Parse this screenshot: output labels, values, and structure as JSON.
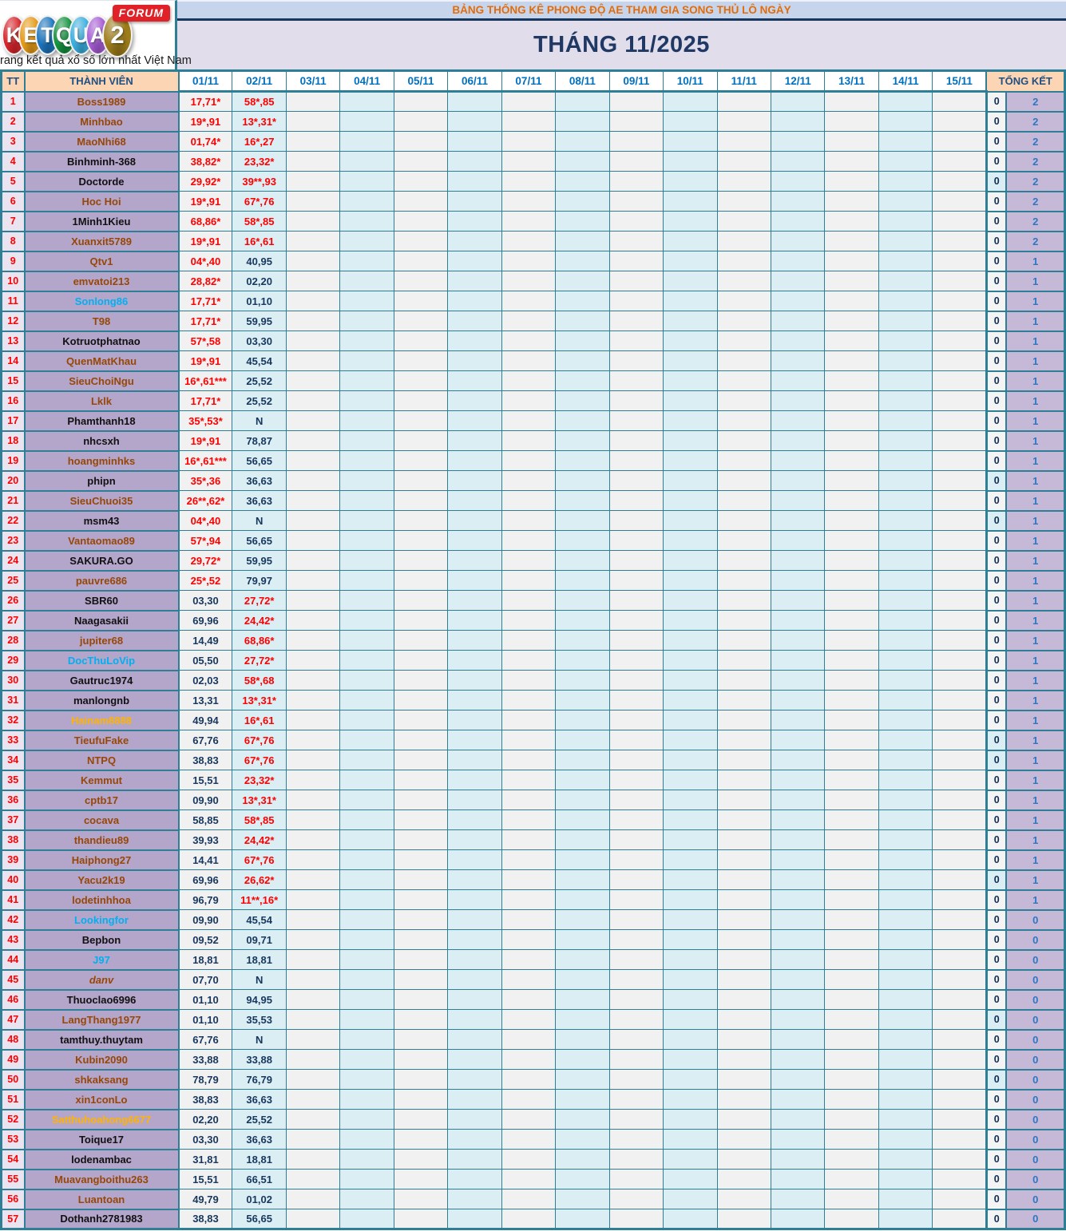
{
  "logo": {
    "letters": [
      {
        "ch": "K",
        "color": "#d6252c"
      },
      {
        "ch": "E",
        "color": "#e59a18"
      },
      {
        "ch": "T",
        "color": "#1b74bc"
      },
      {
        "ch": "Q",
        "color": "#15923f"
      },
      {
        "ch": "U",
        "color": "#3baede"
      },
      {
        "ch": "A",
        "color": "#a55bd4"
      },
      {
        "ch": "2",
        "color": "#9c7b19"
      }
    ],
    "forum_label": "FORUM",
    "tagline": "rang kết quả xổ số lớn nhất Việt Nam"
  },
  "header": {
    "title": "BẢNG THỐNG KÊ PHONG ĐỘ AE THAM GIA SONG THỦ LÔ NGÀY",
    "month": "THÁNG 11/2025"
  },
  "table": {
    "tt_label": "TT",
    "member_label": "THÀNH VIÊN",
    "total_label": "TỔNG KẾT",
    "dates": [
      "01/11",
      "02/11",
      "03/11",
      "04/11",
      "05/11",
      "06/11",
      "07/11",
      "08/11",
      "09/11",
      "10/11",
      "11/11",
      "12/11",
      "13/11",
      "14/11",
      "15/11"
    ]
  },
  "colors": {
    "border_teal": "#2e7f96",
    "header_peach": "#fbd5b4",
    "member_purple": "#b4a5ca",
    "total_purple": "#c6b8d7",
    "hit_red": "#fe0000",
    "value_navy": "#17375e",
    "date_blue": "#0070c0",
    "title_orange": "#e36c0a",
    "month_navy": "#1f3864"
  },
  "rows": [
    {
      "tt": "1",
      "name": "Boss1989",
      "name_color": "brown",
      "d1": "17,71*",
      "d1_hit": true,
      "d2": "58*,85",
      "d2_hit": true,
      "zero": "0",
      "total": "2"
    },
    {
      "tt": "2",
      "name": "Minhbao",
      "name_color": "brown",
      "d1": "19*,91",
      "d1_hit": true,
      "d2": "13*,31*",
      "d2_hit": true,
      "zero": "0",
      "total": "2"
    },
    {
      "tt": "3",
      "name": "MaoNhi68",
      "name_color": "brown",
      "d1": "01,74*",
      "d1_hit": true,
      "d2": "16*,27",
      "d2_hit": true,
      "zero": "0",
      "total": "2"
    },
    {
      "tt": "4",
      "name": "Binhminh-368",
      "name_color": "black",
      "d1": "38,82*",
      "d1_hit": true,
      "d2": "23,32*",
      "d2_hit": true,
      "zero": "0",
      "total": "2"
    },
    {
      "tt": "5",
      "name": "Doctorde",
      "name_color": "black",
      "d1": "29,92*",
      "d1_hit": true,
      "d2": "39**,93",
      "d2_hit": true,
      "zero": "0",
      "zero_cyan": true,
      "total": "2"
    },
    {
      "tt": "6",
      "name": "Hoc Hoi",
      "name_color": "brown",
      "d1": "19*,91",
      "d1_hit": true,
      "d2": "67*,76",
      "d2_hit": true,
      "zero": "0",
      "total": "2"
    },
    {
      "tt": "7",
      "name": "1Minh1Kieu",
      "name_color": "black",
      "d1": "68,86*",
      "d1_hit": true,
      "d2": "58*,85",
      "d2_hit": true,
      "zero": "0",
      "total": "2"
    },
    {
      "tt": "8",
      "name": "Xuanxit5789",
      "name_color": "brown",
      "d1": "19*,91",
      "d1_hit": true,
      "d2": "16*,61",
      "d2_hit": true,
      "zero": "0",
      "total": "2"
    },
    {
      "tt": "9",
      "name": "Qtv1",
      "name_color": "brown",
      "d1": "04*,40",
      "d1_hit": true,
      "d2": "40,95",
      "d2_hit": false,
      "zero": "0",
      "total": "1"
    },
    {
      "tt": "10",
      "name": "emvatoi213",
      "name_color": "brown",
      "d1": "28,82*",
      "d1_hit": true,
      "d2": "02,20",
      "d2_hit": false,
      "zero": "0",
      "total": "1"
    },
    {
      "tt": "11",
      "name": "Sonlong86",
      "name_color": "cyan",
      "d1": "17,71*",
      "d1_hit": true,
      "d2": "01,10",
      "d2_hit": false,
      "zero": "0",
      "total": "1"
    },
    {
      "tt": "12",
      "name": "T98",
      "name_color": "brown",
      "d1": "17,71*",
      "d1_hit": true,
      "d2": "59,95",
      "d2_hit": false,
      "zero": "0",
      "total": "1"
    },
    {
      "tt": "13",
      "name": "Kotruotphatnao",
      "name_color": "black",
      "d1": "57*,58",
      "d1_hit": true,
      "d2": "03,30",
      "d2_hit": false,
      "zero": "0",
      "total": "1"
    },
    {
      "tt": "14",
      "name": "QuenMatKhau",
      "name_color": "brown",
      "d1": "19*,91",
      "d1_hit": true,
      "d2": "45,54",
      "d2_hit": false,
      "zero": "0",
      "total": "1"
    },
    {
      "tt": "15",
      "name": "SieuChoiNgu",
      "name_color": "brown",
      "d1": "16*,61***",
      "d1_hit": true,
      "d2": "25,52",
      "d2_hit": false,
      "zero": "0",
      "total": "1"
    },
    {
      "tt": "16",
      "name": "Lklk",
      "name_color": "brown",
      "d1": "17,71*",
      "d1_hit": true,
      "d2": "25,52",
      "d2_hit": false,
      "zero": "0",
      "total": "1"
    },
    {
      "tt": "17",
      "name": "Phamthanh18",
      "name_color": "black",
      "d1": "35*,53*",
      "d1_hit": true,
      "d2": "N",
      "d2_hit": false,
      "zero": "0",
      "total": "1"
    },
    {
      "tt": "18",
      "name": "nhcsxh",
      "name_color": "black",
      "d1": "19*,91",
      "d1_hit": true,
      "d2": "78,87",
      "d2_hit": false,
      "zero": "0",
      "total": "1"
    },
    {
      "tt": "19",
      "name": "hoangminhks",
      "name_color": "brown",
      "d1": "16*,61***",
      "d1_hit": true,
      "d2": "56,65",
      "d2_hit": false,
      "zero": "0",
      "total": "1"
    },
    {
      "tt": "20",
      "name": "phipn",
      "name_color": "black",
      "d1": "35*,36",
      "d1_hit": true,
      "d2": "36,63",
      "d2_hit": false,
      "zero": "0",
      "zero_cyan": true,
      "total": "1"
    },
    {
      "tt": "21",
      "name": "SieuChuoi35",
      "name_color": "brown",
      "d1": "26**,62*",
      "d1_hit": true,
      "d2": "36,63",
      "d2_hit": false,
      "zero": "0",
      "total": "1"
    },
    {
      "tt": "22",
      "name": "msm43",
      "name_color": "black",
      "d1": "04*,40",
      "d1_hit": true,
      "d2": "N",
      "d2_hit": false,
      "zero": "0",
      "zero_cyan": true,
      "total": "1"
    },
    {
      "tt": "23",
      "name": "Vantaomao89",
      "name_color": "brown",
      "d1": "57*,94",
      "d1_hit": true,
      "d2": "56,65",
      "d2_hit": false,
      "zero": "0",
      "total": "1"
    },
    {
      "tt": "24",
      "name": "SAKURA.GO",
      "name_color": "black",
      "d1": "29,72*",
      "d1_hit": true,
      "d2": "59,95",
      "d2_hit": false,
      "zero": "0",
      "total": "1"
    },
    {
      "tt": "25",
      "name": "pauvre686",
      "name_color": "brown",
      "d1": "25*,52",
      "d1_hit": true,
      "d2": "79,97",
      "d2_hit": false,
      "zero": "0",
      "total": "1"
    },
    {
      "tt": "26",
      "name": "SBR60",
      "name_color": "black",
      "d1": "03,30",
      "d1_hit": false,
      "d2": "27,72*",
      "d2_hit": true,
      "zero": "0",
      "total": "1"
    },
    {
      "tt": "27",
      "name": "Naagasakii",
      "name_color": "black",
      "d1": "69,96",
      "d1_hit": false,
      "d2": "24,42*",
      "d2_hit": true,
      "zero": "0",
      "total": "1"
    },
    {
      "tt": "28",
      "name": "jupiter68",
      "name_color": "brown",
      "d1": "14,49",
      "d1_hit": false,
      "d2": "68,86*",
      "d2_hit": true,
      "zero": "0",
      "total": "1"
    },
    {
      "tt": "29",
      "name": "DocThuLoVip",
      "name_color": "cyan",
      "d1": "05,50",
      "d1_hit": false,
      "d2": "27,72*",
      "d2_hit": true,
      "zero": "0",
      "total": "1"
    },
    {
      "tt": "30",
      "name": "Gautruc1974",
      "name_color": "black",
      "d1": "02,03",
      "d1_hit": false,
      "d2": "58*,68",
      "d2_hit": true,
      "zero": "0",
      "total": "1"
    },
    {
      "tt": "31",
      "name": "manlongnb",
      "name_color": "black",
      "d1": "13,31",
      "d1_hit": false,
      "d2": "13*,31*",
      "d2_hit": true,
      "zero": "0",
      "total": "1"
    },
    {
      "tt": "32",
      "name": "Hainam8888",
      "name_color": "orange",
      "d1": "49,94",
      "d1_hit": false,
      "d2": "16*,61",
      "d2_hit": true,
      "zero": "0",
      "total": "1"
    },
    {
      "tt": "33",
      "name": "TieufuFake",
      "name_color": "brown",
      "d1": "67,76",
      "d1_hit": false,
      "d2": "67*,76",
      "d2_hit": true,
      "zero": "0",
      "zero_cyan": true,
      "total": "1"
    },
    {
      "tt": "34",
      "name": "NTPQ",
      "name_color": "brown",
      "d1": "38,83",
      "d1_hit": false,
      "d2": "67*,76",
      "d2_hit": true,
      "zero": "0",
      "zero_cyan": true,
      "total": "1"
    },
    {
      "tt": "35",
      "name": "Kemmut",
      "name_color": "brown",
      "d1": "15,51",
      "d1_hit": false,
      "d2": "23,32*",
      "d2_hit": true,
      "zero": "0",
      "total": "1"
    },
    {
      "tt": "36",
      "name": "cptb17",
      "name_color": "brown",
      "d1": "09,90",
      "d1_hit": false,
      "d2": "13*,31*",
      "d2_hit": true,
      "zero": "0",
      "total": "1"
    },
    {
      "tt": "37",
      "name": "cocava",
      "name_color": "brown",
      "d1": "58,85",
      "d1_hit": false,
      "d2": "58*,85",
      "d2_hit": true,
      "zero": "0",
      "total": "1"
    },
    {
      "tt": "38",
      "name": "thandieu89",
      "name_color": "brown",
      "d1": "39,93",
      "d1_hit": false,
      "d2": "24,42*",
      "d2_hit": true,
      "zero": "0",
      "total": "1"
    },
    {
      "tt": "39",
      "name": "Haiphong27",
      "name_color": "brown",
      "d1": "14,41",
      "d1_hit": false,
      "d2": "67*,76",
      "d2_hit": true,
      "zero": "0",
      "total": "1"
    },
    {
      "tt": "40",
      "name": "Yacu2k19",
      "name_color": "brown",
      "d1": "69,96",
      "d1_hit": false,
      "d2": "26,62*",
      "d2_hit": true,
      "zero": "0",
      "zero_cyan": true,
      "total": "1"
    },
    {
      "tt": "41",
      "name": "lodetinhhoa",
      "name_color": "brown",
      "d1": "96,79",
      "d1_hit": false,
      "d2": "11**,16*",
      "d2_hit": true,
      "zero": "0",
      "total": "1"
    },
    {
      "tt": "42",
      "name": "Lookingfor",
      "name_color": "cyan",
      "d1": "09,90",
      "d1_hit": false,
      "d2": "45,54",
      "d2_hit": false,
      "zero": "0",
      "total": "0"
    },
    {
      "tt": "43",
      "name": "Bepbon",
      "name_color": "black",
      "d1": "09,52",
      "d1_hit": false,
      "d2": "09,71",
      "d2_hit": false,
      "zero": "0",
      "total": "0"
    },
    {
      "tt": "44",
      "name": "J97",
      "name_color": "cyan",
      "d1": "18,81",
      "d1_hit": false,
      "d2": "18,81",
      "d2_hit": false,
      "zero": "0",
      "total": "0"
    },
    {
      "tt": "45",
      "name": "danv",
      "name_color": "brown",
      "italic": true,
      "d1": "07,70",
      "d1_hit": false,
      "d2": "N",
      "d2_hit": false,
      "zero": "0",
      "total": "0"
    },
    {
      "tt": "46",
      "name": "Thuoclao6996",
      "name_color": "black",
      "d1": "01,10",
      "d1_hit": false,
      "d2": "94,95",
      "d2_hit": false,
      "zero": "0",
      "total": "0"
    },
    {
      "tt": "47",
      "name": "LangThang1977",
      "name_color": "brown",
      "d1": "01,10",
      "d1_hit": false,
      "d2": "35,53",
      "d2_hit": false,
      "zero": "0",
      "zero_cyan": true,
      "total": "0"
    },
    {
      "tt": "48",
      "name": "tamthuy.thuytam",
      "name_color": "black",
      "d1": "67,76",
      "d1_hit": false,
      "d2": "N",
      "d2_hit": false,
      "zero": "0",
      "total": "0"
    },
    {
      "tt": "49",
      "name": "Kubin2090",
      "name_color": "brown",
      "d1": "33,88",
      "d1_hit": false,
      "d2": "33,88",
      "d2_hit": false,
      "zero": "0",
      "total": "0"
    },
    {
      "tt": "50",
      "name": "shkaksang",
      "name_color": "brown",
      "d1": "78,79",
      "d1_hit": false,
      "d2": "76,79",
      "d2_hit": false,
      "zero": "0",
      "zero_cyan": true,
      "total": "0"
    },
    {
      "tt": "51",
      "name": "xin1conLo",
      "name_color": "brown",
      "d1": "38,83",
      "d1_hit": false,
      "d2": "36,63",
      "d2_hit": false,
      "zero": "0",
      "total": "0"
    },
    {
      "tt": "52",
      "name": "Satthuhoahong6677",
      "name_color": "orange",
      "d1": "02,20",
      "d1_hit": false,
      "d2": "25,52",
      "d2_hit": false,
      "zero": "0",
      "total": "0"
    },
    {
      "tt": "53",
      "name": "Toique17",
      "name_color": "black",
      "d1": "03,30",
      "d1_hit": false,
      "d2": "36,63",
      "d2_hit": false,
      "zero": "0",
      "total": "0"
    },
    {
      "tt": "54",
      "name": "lodenambac",
      "name_color": "black",
      "d1": "31,81",
      "d1_hit": false,
      "d2": "18,81",
      "d2_hit": false,
      "zero": "0",
      "total": "0"
    },
    {
      "tt": "55",
      "name": "Muavangboithu263",
      "name_color": "brown",
      "d1": "15,51",
      "d1_hit": false,
      "d2": "66,51",
      "d2_hit": false,
      "zero": "0",
      "total": "0"
    },
    {
      "tt": "56",
      "name": "Luantoan",
      "name_color": "brown",
      "d1": "49,79",
      "d1_hit": false,
      "d2": "01,02",
      "d2_hit": false,
      "zero": "0",
      "total": "0"
    },
    {
      "tt": "57",
      "name": "Dothanh2781983",
      "name_color": "black",
      "d1": "38,83",
      "d1_hit": false,
      "d2": "56,65",
      "d2_hit": false,
      "zero": "0",
      "total": "0"
    }
  ]
}
